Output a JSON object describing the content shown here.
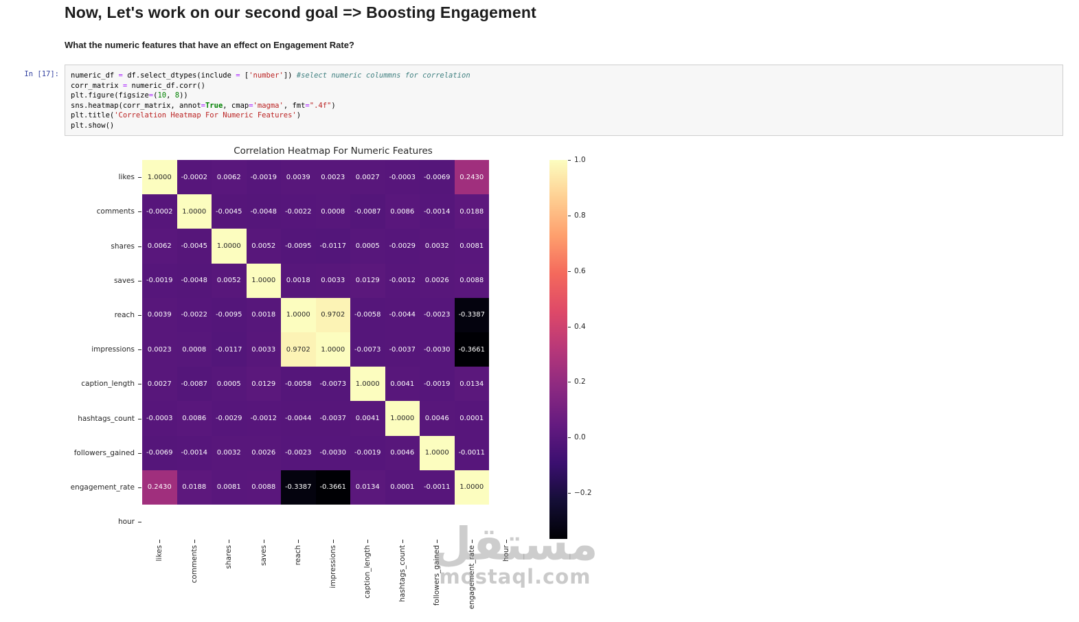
{
  "page": {
    "heading": "Now, Let's work on our second goal => Boosting Engagement",
    "subheading": "What the numeric features that have an effect on Engagement Rate?"
  },
  "cell": {
    "prompt": "In [17]:",
    "code_lines": [
      [
        {
          "t": "numeric_df ",
          "c": "plain"
        },
        {
          "t": "=",
          "c": "op"
        },
        {
          "t": " df.select_dtypes(include ",
          "c": "plain"
        },
        {
          "t": "=",
          "c": "op"
        },
        {
          "t": " [",
          "c": "plain"
        },
        {
          "t": "'number'",
          "c": "str"
        },
        {
          "t": "]) ",
          "c": "plain"
        },
        {
          "t": "#select numeric colummns for correlation",
          "c": "com"
        }
      ],
      [
        {
          "t": "corr_matrix ",
          "c": "plain"
        },
        {
          "t": "=",
          "c": "op"
        },
        {
          "t": " numeric_df.corr()",
          "c": "plain"
        }
      ],
      [
        {
          "t": "plt.figure(figsize",
          "c": "plain"
        },
        {
          "t": "=",
          "c": "op"
        },
        {
          "t": "(",
          "c": "plain"
        },
        {
          "t": "10",
          "c": "num"
        },
        {
          "t": ", ",
          "c": "plain"
        },
        {
          "t": "8",
          "c": "num"
        },
        {
          "t": "))",
          "c": "plain"
        }
      ],
      [
        {
          "t": "sns.heatmap(corr_matrix, annot",
          "c": "plain"
        },
        {
          "t": "=",
          "c": "op"
        },
        {
          "t": "True",
          "c": "kw"
        },
        {
          "t": ", cmap",
          "c": "plain"
        },
        {
          "t": "=",
          "c": "op"
        },
        {
          "t": "'magma'",
          "c": "str"
        },
        {
          "t": ", fmt",
          "c": "plain"
        },
        {
          "t": "=",
          "c": "op"
        },
        {
          "t": "\".4f\"",
          "c": "str"
        },
        {
          "t": ")",
          "c": "plain"
        }
      ],
      [
        {
          "t": "plt.title(",
          "c": "plain"
        },
        {
          "t": "'Correlation Heatmap For Numeric Features'",
          "c": "str"
        },
        {
          "t": ")",
          "c": "plain"
        }
      ],
      [
        {
          "t": "plt.show()",
          "c": "plain"
        }
      ]
    ]
  },
  "chart_data": {
    "type": "heatmap",
    "title": "Correlation Heatmap For Numeric Features",
    "labels": [
      "likes",
      "comments",
      "shares",
      "saves",
      "reach",
      "impressions",
      "caption_length",
      "hashtags_count",
      "followers_gained",
      "engagement_rate",
      "hour"
    ],
    "matrix": [
      [
        1.0,
        -0.0002,
        0.0062,
        -0.0019,
        0.0039,
        0.0023,
        0.0027,
        -0.0003,
        -0.0069,
        0.243,
        null
      ],
      [
        -0.0002,
        1.0,
        -0.0045,
        -0.0048,
        -0.0022,
        0.0008,
        -0.0087,
        0.0086,
        -0.0014,
        0.0188,
        null
      ],
      [
        0.0062,
        -0.0045,
        1.0,
        0.0052,
        -0.0095,
        -0.0117,
        0.0005,
        -0.0029,
        0.0032,
        0.0081,
        null
      ],
      [
        -0.0019,
        -0.0048,
        0.0052,
        1.0,
        0.0018,
        0.0033,
        0.0129,
        -0.0012,
        0.0026,
        0.0088,
        null
      ],
      [
        0.0039,
        -0.0022,
        -0.0095,
        0.0018,
        1.0,
        0.9702,
        -0.0058,
        -0.0044,
        -0.0023,
        -0.3387,
        null
      ],
      [
        0.0023,
        0.0008,
        -0.0117,
        0.0033,
        0.9702,
        1.0,
        -0.0073,
        -0.0037,
        -0.003,
        -0.3661,
        null
      ],
      [
        0.0027,
        -0.0087,
        0.0005,
        0.0129,
        -0.0058,
        -0.0073,
        1.0,
        0.0041,
        -0.0019,
        0.0134,
        null
      ],
      [
        -0.0003,
        0.0086,
        -0.0029,
        -0.0012,
        -0.0044,
        -0.0037,
        0.0041,
        1.0,
        0.0046,
        0.0001,
        null
      ],
      [
        -0.0069,
        -0.0014,
        0.0032,
        0.0026,
        -0.0023,
        -0.003,
        -0.0019,
        0.0046,
        1.0,
        -0.0011,
        null
      ],
      [
        0.243,
        0.0188,
        0.0081,
        0.0088,
        -0.3387,
        -0.3661,
        0.0134,
        0.0001,
        -0.0011,
        1.0,
        null
      ],
      [
        null,
        null,
        null,
        null,
        null,
        null,
        null,
        null,
        null,
        null,
        null
      ]
    ],
    "value_format": ".4f",
    "cmap": "magma",
    "vmin": -0.3661,
    "vmax": 1.0,
    "legend_position": "right-colorbar",
    "colorbar_ticks": [
      {
        "label": "1.0",
        "value": 1.0
      },
      {
        "label": "0.8",
        "value": 0.8
      },
      {
        "label": "0.6",
        "value": 0.6
      },
      {
        "label": "0.4",
        "value": 0.4
      },
      {
        "label": "0.2",
        "value": 0.2
      },
      {
        "label": "0.0",
        "value": 0.0
      },
      {
        "label": "−0.2",
        "value": -0.2
      }
    ]
  },
  "watermark": {
    "arabic": "مستقل",
    "latin": "mostaql.com"
  }
}
